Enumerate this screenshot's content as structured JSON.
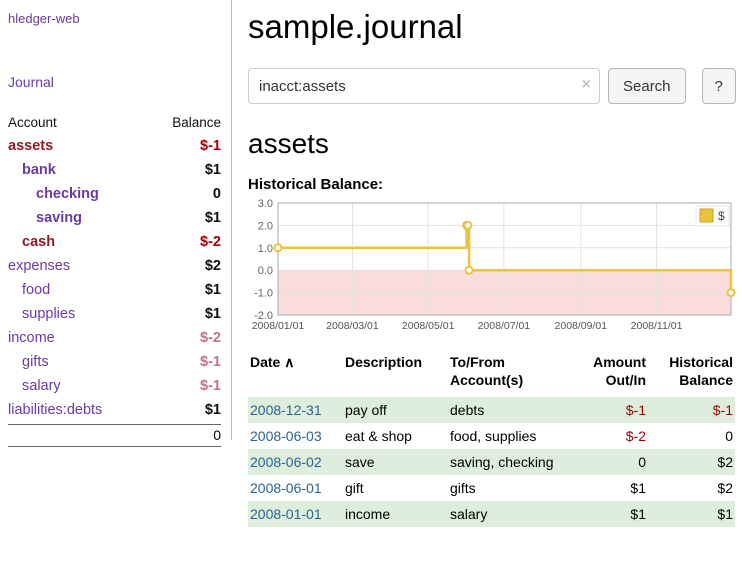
{
  "colors": {
    "accent_purple": "#6a3aa2",
    "date_link_blue": "#2a6496",
    "negative_red": "#a40000",
    "negative_soft_red": "#c17287",
    "row_shade_green": "#ddeedd",
    "chart_line_yellow": "#edc240",
    "chart_negative_region": "#f9dcdc"
  },
  "sidebar": {
    "app_title": "hledger-web",
    "journal_link": "Journal",
    "accounts_table": {
      "headers": {
        "account": "Account",
        "balance": "Balance"
      },
      "rows": [
        {
          "name": "assets",
          "balance": "$-1",
          "depth": 1,
          "bold": true,
          "muted": false
        },
        {
          "name": "bank",
          "balance": "$1",
          "depth": 2,
          "bold": true,
          "muted": false
        },
        {
          "name": "checking",
          "balance": "0",
          "depth": 3,
          "bold": true,
          "muted": false
        },
        {
          "name": "saving",
          "balance": "$1",
          "depth": 3,
          "bold": true,
          "muted": false
        },
        {
          "name": "cash",
          "balance": "$-2",
          "depth": 2,
          "bold": true,
          "muted": false
        },
        {
          "name": "expenses",
          "balance": "$2",
          "depth": 1,
          "bold": false,
          "muted": false
        },
        {
          "name": "food",
          "balance": "$1",
          "depth": 2,
          "bold": false,
          "muted": false
        },
        {
          "name": "supplies",
          "balance": "$1",
          "depth": 2,
          "bold": false,
          "muted": false
        },
        {
          "name": "income",
          "balance": "$-2",
          "depth": 1,
          "bold": false,
          "muted": true
        },
        {
          "name": "gifts",
          "balance": "$-1",
          "depth": 2,
          "bold": false,
          "muted": true
        },
        {
          "name": "salary",
          "balance": "$-1",
          "depth": 2,
          "bold": false,
          "muted": true
        },
        {
          "name": "liabilities:debts",
          "balance": "$1",
          "depth": 1,
          "bold": false,
          "muted": false
        }
      ],
      "total": "0"
    }
  },
  "main": {
    "title": "sample.journal",
    "search": {
      "value": "inacct:assets",
      "clear_icon": "×",
      "button_label": "Search",
      "help_label": "?"
    },
    "account_heading": "assets",
    "register_table": {
      "headers": {
        "date": "Date",
        "sort_indicator": "∧",
        "description": "Description",
        "tofrom": "To/From\nAccount(s)",
        "amount": "Amount\nOut/In",
        "balance": "Historical\nBalance"
      },
      "rows": [
        {
          "date": "2008-12-31",
          "description": "pay off",
          "accounts": "debts",
          "amount": "$-1",
          "balance": "$-1"
        },
        {
          "date": "2008-06-03",
          "description": "eat & shop",
          "accounts": "food, supplies",
          "amount": "$-2",
          "balance": "0"
        },
        {
          "date": "2008-06-02",
          "description": "save",
          "accounts": "saving, checking",
          "amount": "0",
          "balance": "$2"
        },
        {
          "date": "2008-06-01",
          "description": "gift",
          "accounts": "gifts",
          "amount": "$1",
          "balance": "$2"
        },
        {
          "date": "2008-01-01",
          "description": "income",
          "accounts": "salary",
          "amount": "$1",
          "balance": "$1"
        }
      ]
    }
  },
  "chart_data": {
    "type": "line",
    "step": true,
    "title": "Historical Balance:",
    "xrange": [
      "2008-01-01",
      "2008-12-31"
    ],
    "ylim": [
      -2,
      3
    ],
    "yticks": [
      "3.0",
      "2.0",
      "1.0",
      "0.0",
      "-1.0",
      "-2.0"
    ],
    "xticks": [
      "2008/01/01",
      "2008/03/01",
      "2008/05/01",
      "2008/07/01",
      "2008/09/01",
      "2008/11/01"
    ],
    "series": [
      {
        "name": "$",
        "color": "#edc240",
        "points": [
          [
            "2008-01-01",
            1.0
          ],
          [
            "2008-06-01",
            2.0
          ],
          [
            "2008-06-02",
            2.0
          ],
          [
            "2008-06-03",
            0.0
          ],
          [
            "2008-12-31",
            -1.0
          ]
        ]
      }
    ],
    "legend": {
      "label": "$",
      "position": "top-right"
    },
    "negative_region_color": "#f9dcdc",
    "grid": true
  }
}
